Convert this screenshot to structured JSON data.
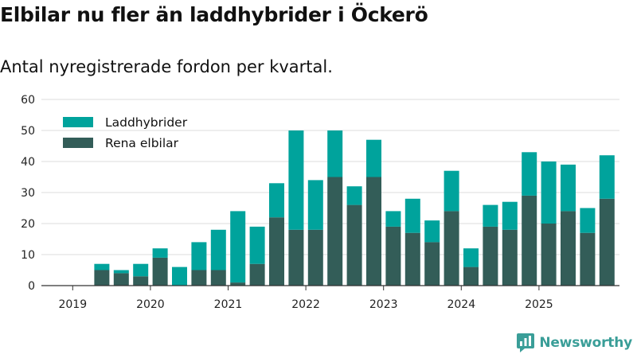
{
  "header": {
    "title": "Elbilar nu fler än laddhybrider i Öckerö",
    "subtitle": "Antal nyregistrerade fordon per kvartal."
  },
  "branding": {
    "name": "Newsworthy",
    "color": "#3a9e98"
  },
  "chart_data": {
    "type": "bar",
    "stacked": true,
    "title": "Elbilar nu fler än laddhybrider i Öckerö",
    "subtitle": "Antal nyregistrerade fordon per kvartal.",
    "xlabel": "",
    "ylabel": "",
    "ylim": [
      0,
      60
    ],
    "yticks": [
      0,
      10,
      20,
      30,
      40,
      50,
      60
    ],
    "grid": true,
    "legend_position": "top-left",
    "categories": [
      "2019 Q1",
      "2019 Q2",
      "2019 Q3",
      "2019 Q4",
      "2020 Q1",
      "2020 Q2",
      "2020 Q3",
      "2020 Q4",
      "2021 Q1",
      "2021 Q2",
      "2021 Q3",
      "2021 Q4",
      "2022 Q1",
      "2022 Q2",
      "2022 Q3",
      "2022 Q4",
      "2023 Q1",
      "2023 Q2",
      "2023 Q3",
      "2023 Q4",
      "2024 Q1",
      "2024 Q2",
      "2024 Q3",
      "2024 Q4",
      "2025 Q1",
      "2025 Q2",
      "2025 Q3",
      "2025 Q4"
    ],
    "xtick_labels": [
      "2019",
      "2020",
      "2021",
      "2022",
      "2023",
      "2024",
      "2025"
    ],
    "series": [
      {
        "name": "Rena elbilar",
        "color": "#335d58",
        "values": [
          0,
          5,
          4,
          3,
          9,
          0,
          5,
          5,
          1,
          7,
          22,
          18,
          18,
          35,
          26,
          35,
          19,
          17,
          14,
          24,
          6,
          19,
          18,
          29,
          20,
          24,
          17,
          28
        ]
      },
      {
        "name": "Laddhybrider",
        "color": "#00a39c",
        "values": [
          0,
          2,
          1,
          4,
          3,
          6,
          9,
          13,
          23,
          12,
          11,
          32,
          16,
          15,
          6,
          12,
          5,
          11,
          7,
          13,
          6,
          7,
          9,
          14,
          20,
          15,
          8,
          14
        ]
      }
    ],
    "legend": [
      "Laddhybrider",
      "Rena elbilar"
    ]
  }
}
